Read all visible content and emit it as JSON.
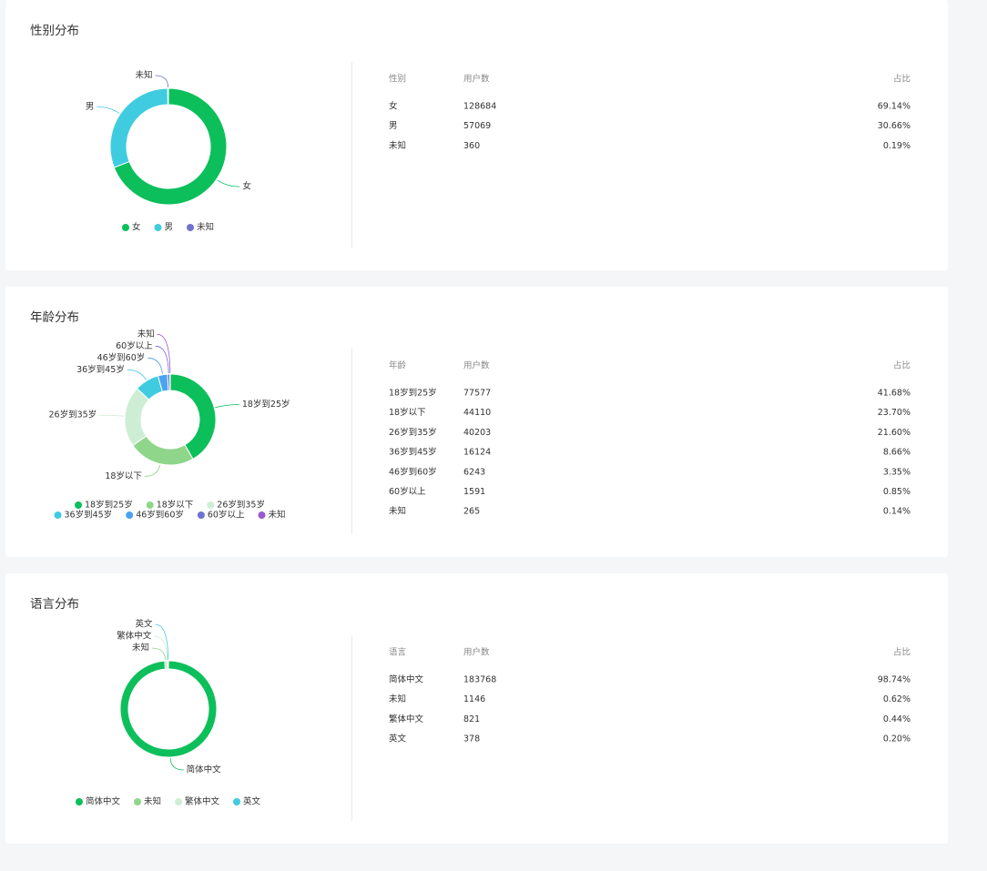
{
  "panels": [
    {
      "title": "性别分布",
      "chart": {
        "type": "pie",
        "donut": true,
        "colors": [
          "#0cbf5b",
          "#3fcce0",
          "#6f72cf"
        ]
      },
      "table": {
        "headers": [
          "性别",
          "用户数",
          "占比"
        ],
        "rows": [
          [
            "女",
            128684,
            "69.14%"
          ],
          [
            "男",
            57069,
            "30.66%"
          ],
          [
            "未知",
            360,
            "0.19%"
          ]
        ]
      }
    },
    {
      "title": "年龄分布",
      "chart": {
        "type": "pie",
        "donut": true,
        "colors": [
          "#0cbf5b",
          "#8fd68b",
          "#cdeed4",
          "#3fcce0",
          "#4aa3f0",
          "#6f72cf",
          "#9b59d0"
        ]
      },
      "table": {
        "headers": [
          "年龄",
          "用户数",
          "占比"
        ],
        "rows": [
          [
            "18岁到25岁",
            77577,
            "41.68%"
          ],
          [
            "18岁以下",
            44110,
            "23.70%"
          ],
          [
            "26岁到35岁",
            40203,
            "21.60%"
          ],
          [
            "36岁到45岁",
            16124,
            "8.66%"
          ],
          [
            "46岁到60岁",
            6243,
            "3.35%"
          ],
          [
            "60岁以上",
            1591,
            "0.85%"
          ],
          [
            "未知",
            265,
            "0.14%"
          ]
        ]
      }
    },
    {
      "title": "语言分布",
      "chart": {
        "type": "pie",
        "donut": true,
        "colors": [
          "#0cbf5b",
          "#8fd68b",
          "#cdeed4",
          "#3fcce0"
        ]
      },
      "table": {
        "headers": [
          "语言",
          "用户数",
          "占比"
        ],
        "rows": [
          [
            "简体中文",
            183768,
            "98.74%"
          ],
          [
            "未知",
            1146,
            "0.62%"
          ],
          [
            "繁体中文",
            821,
            "0.44%"
          ],
          [
            "英文",
            378,
            "0.20%"
          ]
        ]
      }
    }
  ]
}
